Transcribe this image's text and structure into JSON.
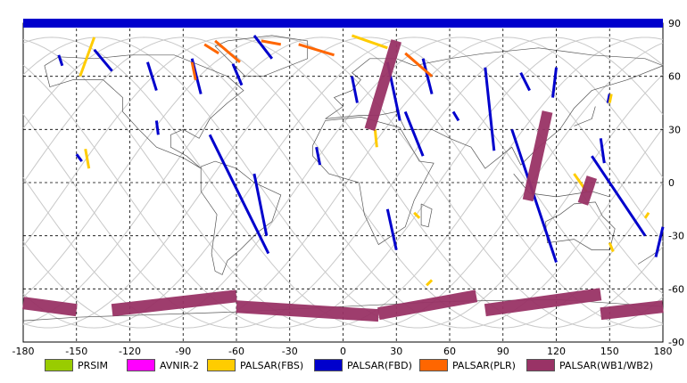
{
  "map": {
    "projection": "equirectangular",
    "lon_range": [
      -180,
      180
    ],
    "lat_range": [
      -90,
      90
    ],
    "x_ticks": [
      "-180",
      "-150",
      "-120",
      "-90",
      "-60",
      "-30",
      "0",
      "30",
      "60",
      "90",
      "120",
      "150",
      "180"
    ],
    "y_ticks": [
      "90",
      "60",
      "30",
      "0",
      "-30",
      "-60",
      "-90"
    ],
    "grid": "dashed-30deg"
  },
  "legend": [
    {
      "label": "PRSIM",
      "color": "#99cc00"
    },
    {
      "label": "AVNIR-2",
      "color": "#ff00ff"
    },
    {
      "label": "PALSAR(FBS)",
      "color": "#ffcc00"
    },
    {
      "label": "PALSAR(FBD)",
      "color": "#0000cc"
    },
    {
      "label": "PALSAR(PLR)",
      "color": "#ff6600"
    },
    {
      "label": "PALSAR(WB1/WB2)",
      "color": "#993366"
    }
  ],
  "chart_data": {
    "type": "map",
    "series": [
      {
        "name": "PALSAR(FBD)",
        "color": "#0000cc",
        "swaths": [
          [
            [
              -160,
              72
            ],
            [
              -158,
              66
            ]
          ],
          [
            [
              -140,
              75
            ],
            [
              -130,
              63
            ]
          ],
          [
            [
              -110,
              68
            ],
            [
              -105,
              52
            ]
          ],
          [
            [
              -85,
              70
            ],
            [
              -80,
              50
            ]
          ],
          [
            [
              -62,
              67
            ],
            [
              -57,
              55
            ]
          ],
          [
            [
              -50,
              83
            ],
            [
              -40,
              70
            ]
          ],
          [
            [
              -105,
              35
            ],
            [
              -104,
              27
            ]
          ],
          [
            [
              -75,
              27
            ],
            [
              -42,
              -40
            ]
          ],
          [
            [
              -50,
              5
            ],
            [
              -43,
              -30
            ]
          ],
          [
            [
              5,
              60
            ],
            [
              8,
              45
            ]
          ],
          [
            [
              25,
              68
            ],
            [
              32,
              35
            ]
          ],
          [
            [
              35,
              40
            ],
            [
              45,
              15
            ]
          ],
          [
            [
              45,
              70
            ],
            [
              50,
              50
            ]
          ],
          [
            [
              62,
              40
            ],
            [
              65,
              35
            ]
          ],
          [
            [
              -15,
              20
            ],
            [
              -13,
              10
            ]
          ],
          [
            [
              80,
              65
            ],
            [
              85,
              18
            ]
          ],
          [
            [
              100,
              62
            ],
            [
              105,
              52
            ]
          ],
          [
            [
              120,
              65
            ],
            [
              118,
              48
            ]
          ],
          [
            [
              95,
              30
            ],
            [
              120,
              -45
            ]
          ],
          [
            [
              140,
              15
            ],
            [
              170,
              -30
            ]
          ],
          [
            [
              145,
              25
            ],
            [
              147,
              11
            ]
          ],
          [
            [
              150,
              50
            ],
            [
              149,
              45
            ]
          ],
          [
            [
              180,
              -25
            ],
            [
              176,
              -42
            ]
          ],
          [
            [
              25,
              -15
            ],
            [
              30,
              -38
            ]
          ],
          [
            [
              -150,
              16
            ],
            [
              -147,
              12
            ]
          ],
          [
            [
              -180,
              90
            ],
            [
              180,
              90
            ]
          ]
        ]
      },
      {
        "name": "PALSAR(FBS)",
        "color": "#ffcc00",
        "swaths": [
          [
            [
              -140,
              82
            ],
            [
              -148,
              60
            ]
          ],
          [
            [
              5,
              83
            ],
            [
              25,
              76
            ]
          ],
          [
            [
              40,
              -17
            ],
            [
              43,
              -20
            ]
          ],
          [
            [
              18,
              30
            ],
            [
              19,
              20
            ]
          ],
          [
            [
              -145,
              19
            ],
            [
              -143,
              8
            ]
          ],
          [
            [
              130,
              5
            ],
            [
              137,
              -5
            ]
          ],
          [
            [
              150,
              -34
            ],
            [
              152,
              -39
            ]
          ],
          [
            [
              170,
              -20
            ],
            [
              172,
              -17
            ]
          ],
          [
            [
              150,
              45
            ],
            [
              151,
              50
            ]
          ],
          [
            [
              47,
              -58
            ],
            [
              50,
              -55
            ]
          ]
        ]
      },
      {
        "name": "PALSAR(PLR)",
        "color": "#ff6600",
        "swaths": [
          [
            [
              -72,
              80
            ],
            [
              -58,
              68
            ]
          ],
          [
            [
              -78,
              78
            ],
            [
              -70,
              73
            ]
          ],
          [
            [
              -46,
              80
            ],
            [
              -35,
              78
            ]
          ],
          [
            [
              -25,
              78
            ],
            [
              -5,
              72
            ]
          ],
          [
            [
              35,
              73
            ],
            [
              50,
              60
            ]
          ],
          [
            [
              -85,
              68
            ],
            [
              -83,
              58
            ]
          ]
        ]
      },
      {
        "name": "PALSAR(WB1/WB2)",
        "color": "#993366",
        "swaths": [
          [
            [
              30,
              80
            ],
            [
              15,
              30
            ]
          ],
          [
            [
              115,
              40
            ],
            [
              104,
              -10
            ]
          ],
          [
            [
              140,
              3
            ],
            [
              135,
              -12
            ]
          ],
          [
            [
              -180,
              -68
            ],
            [
              -150,
              -72
            ]
          ],
          [
            [
              -130,
              -72
            ],
            [
              -60,
              -64
            ]
          ],
          [
            [
              -60,
              -70
            ],
            [
              20,
              -75
            ]
          ],
          [
            [
              20,
              -74
            ],
            [
              75,
              -64
            ]
          ],
          [
            [
              80,
              -72
            ],
            [
              145,
              -63
            ]
          ],
          [
            [
              145,
              -74
            ],
            [
              180,
              -70
            ]
          ]
        ]
      }
    ]
  }
}
